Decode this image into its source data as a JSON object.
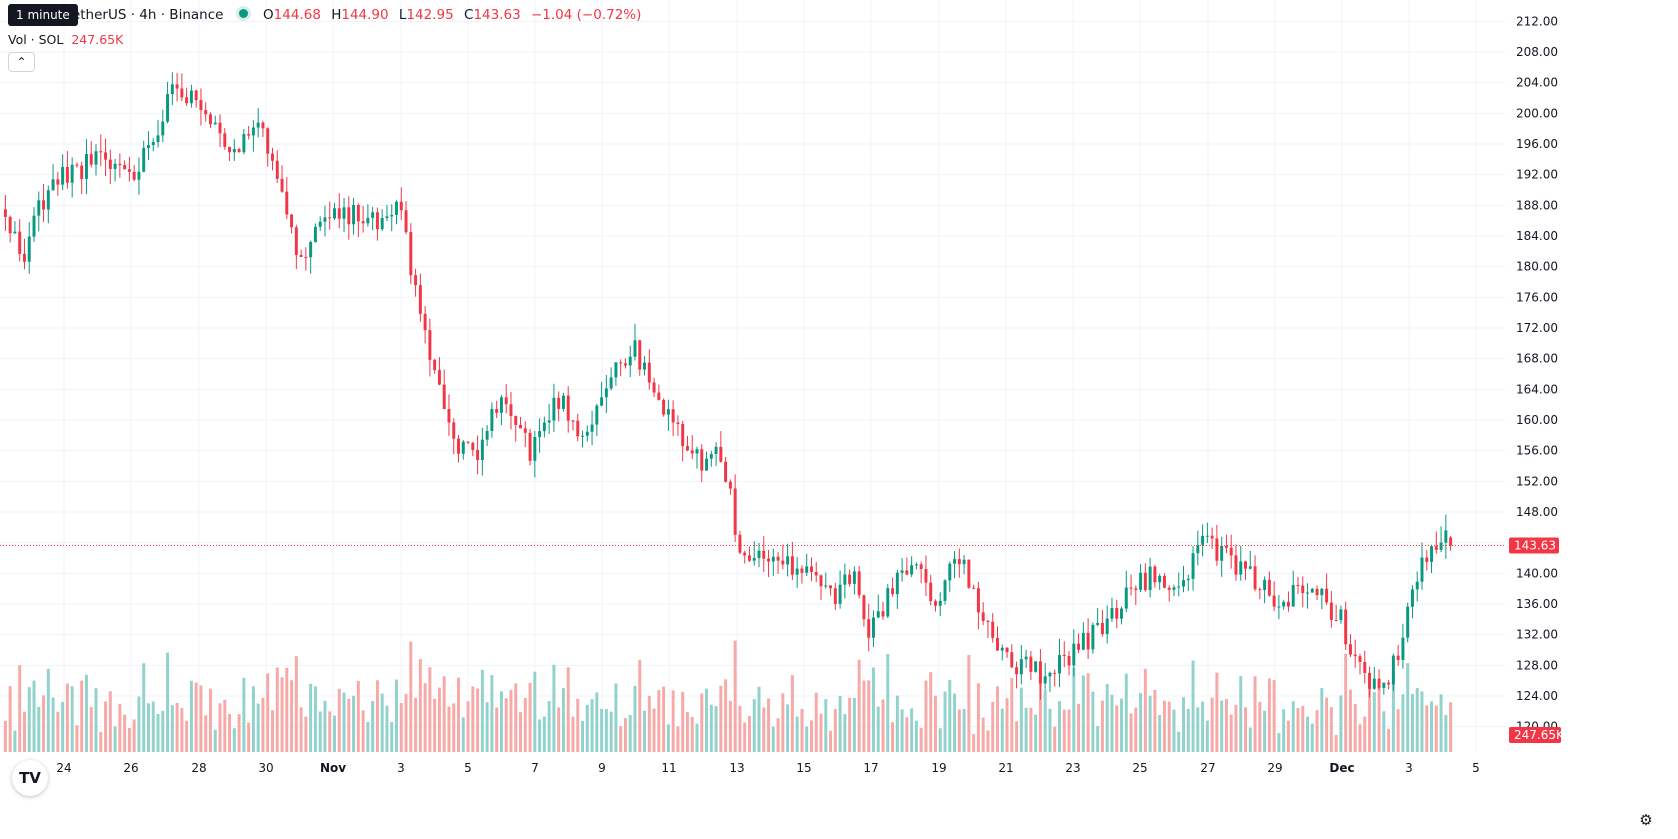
{
  "legend": {
    "tooltip": "1 minute",
    "title": "TetherUS · 4h · Binance",
    "open_label": "O",
    "open_value": "144.68",
    "high_label": "H",
    "high_value": "144.90",
    "low_label": "L",
    "low_value": "142.95",
    "close_label": "C",
    "close_value": "143.63",
    "change": "−1.04 (−0.72%)"
  },
  "volume_legend": {
    "label": "Vol · SOL",
    "value": "247.65K"
  },
  "collapse_glyph": "⌃",
  "logo_glyph": "TV",
  "settings_glyph": "⚙",
  "colors": {
    "up": "#089981",
    "down": "#f23645",
    "vol_up": "#92d2cc",
    "vol_down": "#f7a9a7",
    "grid": "#f0f3fa",
    "axis_text": "#131722"
  },
  "chart_data": {
    "type": "candlestick",
    "timeframe": "4h",
    "y_axis": {
      "range": [
        118,
        214
      ],
      "ticks": [
        120,
        124,
        128,
        132,
        136,
        140,
        144,
        148,
        152,
        156,
        160,
        164,
        168,
        172,
        176,
        180,
        184,
        188,
        192,
        196,
        200,
        204,
        208,
        212
      ],
      "tick_labels": [
        "120.00",
        "124.00",
        "128.00",
        "132.00",
        "136.00",
        "140.00",
        "144.00",
        "148.00",
        "152.00",
        "156.00",
        "160.00",
        "164.00",
        "168.00",
        "172.00",
        "176.00",
        "180.00",
        "184.00",
        "188.00",
        "192.00",
        "196.00",
        "200.00",
        "204.00",
        "208.00",
        "212.00"
      ]
    },
    "x_axis": {
      "tick_labels": [
        "24",
        "26",
        "28",
        "30",
        "Nov",
        "3",
        "5",
        "7",
        "9",
        "11",
        "13",
        "15",
        "17",
        "19",
        "21",
        "23",
        "25",
        "27",
        "29",
        "Dec",
        "3",
        "5"
      ],
      "bold_labels": [
        "Nov",
        "Dec"
      ]
    },
    "last_price": 143.63,
    "last_price_label": "143.63",
    "volume_label": "247.65K",
    "keypoints": [
      {
        "t": 0,
        "p": 186
      },
      {
        "t": 4,
        "p": 181
      },
      {
        "t": 7,
        "p": 188
      },
      {
        "t": 12,
        "p": 192
      },
      {
        "t": 20,
        "p": 194
      },
      {
        "t": 27,
        "p": 192
      },
      {
        "t": 33,
        "p": 200
      },
      {
        "t": 36,
        "p": 204
      },
      {
        "t": 43,
        "p": 200
      },
      {
        "t": 48,
        "p": 195
      },
      {
        "t": 54,
        "p": 198
      },
      {
        "t": 58,
        "p": 191
      },
      {
        "t": 62,
        "p": 180
      },
      {
        "t": 67,
        "p": 188
      },
      {
        "t": 72,
        "p": 187
      },
      {
        "t": 80,
        "p": 185
      },
      {
        "t": 83,
        "p": 188
      },
      {
        "t": 86,
        "p": 176
      },
      {
        "t": 90,
        "p": 166
      },
      {
        "t": 94,
        "p": 157
      },
      {
        "t": 98,
        "p": 155
      },
      {
        "t": 104,
        "p": 163
      },
      {
        "t": 110,
        "p": 156
      },
      {
        "t": 116,
        "p": 163
      },
      {
        "t": 121,
        "p": 158
      },
      {
        "t": 128,
        "p": 167
      },
      {
        "t": 132,
        "p": 169
      },
      {
        "t": 137,
        "p": 162
      },
      {
        "t": 142,
        "p": 158
      },
      {
        "t": 146,
        "p": 154
      },
      {
        "t": 150,
        "p": 156
      },
      {
        "t": 154,
        "p": 143
      },
      {
        "t": 160,
        "p": 141
      },
      {
        "t": 168,
        "p": 141
      },
      {
        "t": 174,
        "p": 137
      },
      {
        "t": 178,
        "p": 141
      },
      {
        "t": 181,
        "p": 132
      },
      {
        "t": 185,
        "p": 137
      },
      {
        "t": 190,
        "p": 141
      },
      {
        "t": 196,
        "p": 136
      },
      {
        "t": 199,
        "p": 143
      },
      {
        "t": 204,
        "p": 136
      },
      {
        "t": 208,
        "p": 131
      },
      {
        "t": 212,
        "p": 128
      },
      {
        "t": 218,
        "p": 127
      },
      {
        "t": 224,
        "p": 130
      },
      {
        "t": 230,
        "p": 133
      },
      {
        "t": 236,
        "p": 138
      },
      {
        "t": 242,
        "p": 140
      },
      {
        "t": 246,
        "p": 137
      },
      {
        "t": 250,
        "p": 144
      },
      {
        "t": 256,
        "p": 142
      },
      {
        "t": 262,
        "p": 139
      },
      {
        "t": 266,
        "p": 137
      },
      {
        "t": 272,
        "p": 137
      },
      {
        "t": 276,
        "p": 137
      },
      {
        "t": 280,
        "p": 134
      },
      {
        "t": 284,
        "p": 127
      },
      {
        "t": 288,
        "p": 125
      },
      {
        "t": 292,
        "p": 129
      },
      {
        "t": 296,
        "p": 140
      },
      {
        "t": 302,
        "p": 144.68
      }
    ],
    "final_candle": {
      "open": 144.68,
      "high": 144.9,
      "low": 142.95,
      "close": 143.63
    }
  }
}
